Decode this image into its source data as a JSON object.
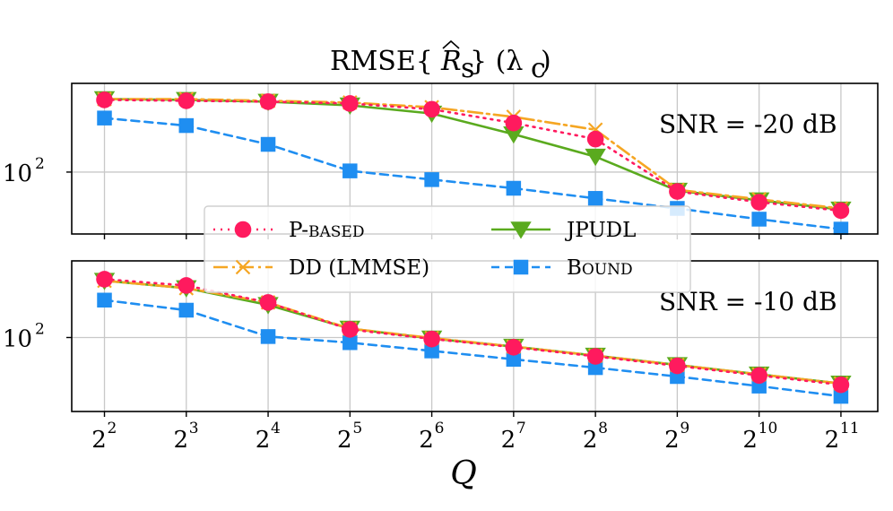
{
  "chart_data": {
    "type": "line",
    "title": "RMSE{R̂s} (λc)",
    "xlabel": "Q",
    "x": [
      2,
      3,
      4,
      5,
      6,
      7,
      8,
      9,
      10,
      11
    ],
    "x_tick_base": "2",
    "x_tick_exponents": [
      "2",
      "3",
      "4",
      "5",
      "6",
      "7",
      "8",
      "9",
      "10",
      "11"
    ],
    "series_styles": [
      {
        "name": "P-BASED",
        "color": "#ff1a5e",
        "dash": "2,6",
        "marker": "circle"
      },
      {
        "name": "DD (LMMSE)",
        "color": "#f5a623",
        "dash": "16,5,3,5",
        "marker": "x"
      },
      {
        "name": "JPUDL",
        "color": "#5aaa1e",
        "dash": "",
        "marker": "triangle-down"
      },
      {
        "name": "BOUND",
        "color": "#1f8ef1",
        "dash": "9,6",
        "marker": "square"
      }
    ],
    "legend": {
      "placement": "center",
      "entries": [
        "P-BASED",
        "DD (LMMSE)",
        "JPUDL",
        "BOUND"
      ]
    },
    "panels": [
      {
        "annotation": "SNR = -20 dB",
        "yscale": "log",
        "ylim": [
          35,
          450
        ],
        "ytick_values": [
          100
        ],
        "ytick_label_base": "10",
        "ytick_label_exponent": "2",
        "series": [
          {
            "name": "P-BASED",
            "values": [
              340,
              335,
              330,
              320,
              290,
              230,
              175,
              72,
              60,
              52
            ]
          },
          {
            "name": "DD (LMMSE)",
            "values": [
              345,
              345,
              335,
              325,
              300,
              255,
              205,
              74,
              63,
              54
            ]
          },
          {
            "name": "JPUDL",
            "values": [
              345,
              340,
              330,
              310,
              270,
              190,
              130,
              73,
              62,
              53
            ]
          },
          {
            "name": "BOUND",
            "values": [
              250,
              220,
              160,
              102,
              88,
              76,
              64,
              54,
              45,
              38
            ]
          }
        ]
      },
      {
        "annotation": "SNR = -10 dB",
        "yscale": "log",
        "ylim": [
          22,
          480
        ],
        "ytick_values": [
          100
        ],
        "ytick_label_base": "10",
        "ytick_label_exponent": "2",
        "series": [
          {
            "name": "P-BASED",
            "values": [
              330,
              290,
              205,
              118,
              97,
              82,
              68,
              56,
              46,
              38
            ]
          },
          {
            "name": "DD (LMMSE)",
            "values": [
              320,
              275,
              205,
              120,
              99,
              83,
              69,
              57,
              47,
              39
            ]
          },
          {
            "name": "JPUDL",
            "values": [
              320,
              275,
              195,
              120,
              98,
              83,
              69,
              57,
              47,
              39
            ]
          },
          {
            "name": "BOUND",
            "values": [
              215,
              175,
              102,
              90,
              76,
              64,
              54,
              45,
              37,
              30
            ]
          }
        ]
      }
    ]
  }
}
